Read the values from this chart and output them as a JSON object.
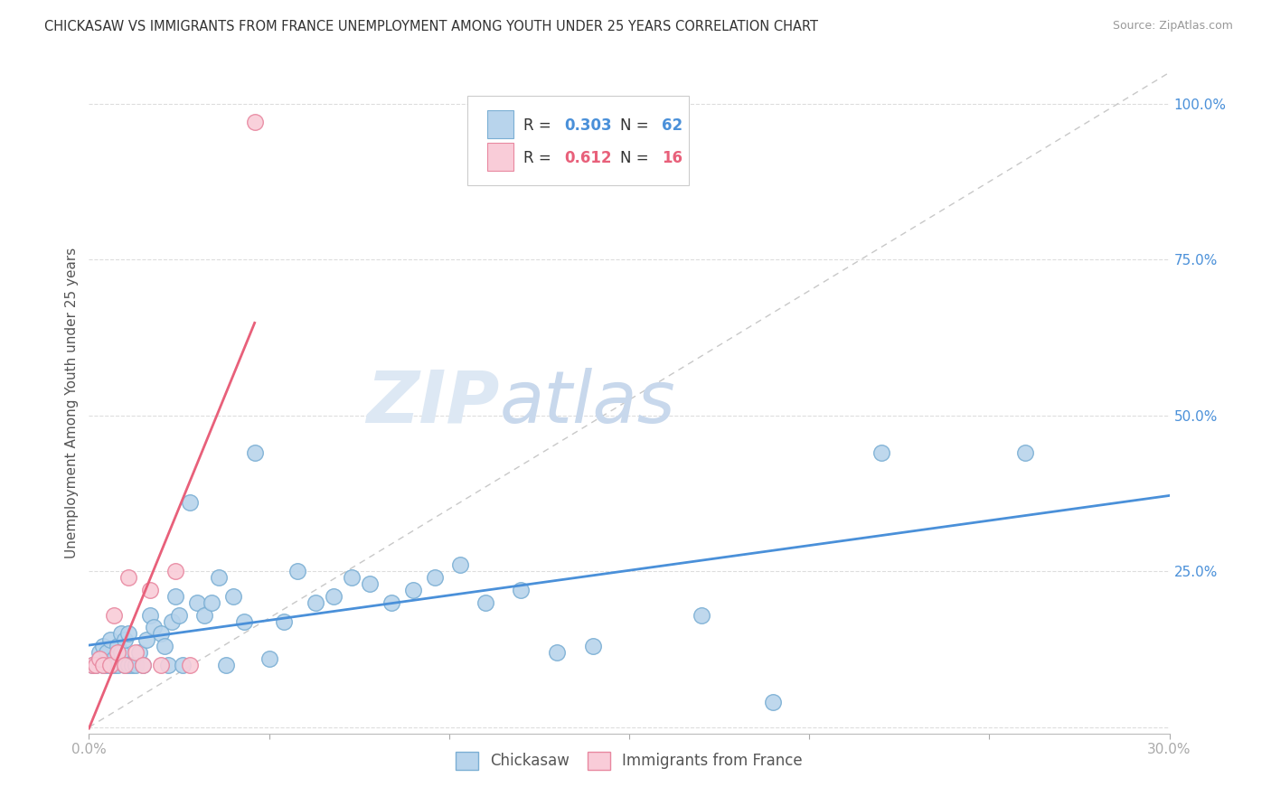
{
  "title": "CHICKASAW VS IMMIGRANTS FROM FRANCE UNEMPLOYMENT AMONG YOUTH UNDER 25 YEARS CORRELATION CHART",
  "source": "Source: ZipAtlas.com",
  "ylabel": "Unemployment Among Youth under 25 years",
  "xlim": [
    0.0,
    0.3
  ],
  "ylim": [
    -0.01,
    1.05
  ],
  "yticks_right": [
    0.0,
    0.25,
    0.5,
    0.75,
    1.0
  ],
  "yticklabels_right": [
    "",
    "25.0%",
    "50.0%",
    "75.0%",
    "100.0%"
  ],
  "chickasaw_color": "#b8d4ec",
  "france_color": "#f9ccd8",
  "chickasaw_edge": "#7bafd4",
  "france_edge": "#e888a0",
  "blue_line_color": "#4a90d9",
  "pink_line_color": "#e8607a",
  "diagonal_color": "#c8c8c8",
  "legend_R_blue": "0.303",
  "legend_N_blue": "62",
  "legend_R_pink": "0.612",
  "legend_N_pink": "16",
  "legend_label_blue": "Chickasaw",
  "legend_label_pink": "Immigrants from France",
  "watermark_zip": "ZIP",
  "watermark_atlas": "atlas",
  "chickasaw_x": [
    0.001,
    0.002,
    0.003,
    0.003,
    0.004,
    0.004,
    0.005,
    0.005,
    0.006,
    0.006,
    0.007,
    0.007,
    0.008,
    0.008,
    0.009,
    0.009,
    0.01,
    0.01,
    0.011,
    0.011,
    0.012,
    0.013,
    0.014,
    0.015,
    0.016,
    0.017,
    0.018,
    0.02,
    0.021,
    0.022,
    0.023,
    0.024,
    0.025,
    0.026,
    0.028,
    0.03,
    0.032,
    0.034,
    0.036,
    0.038,
    0.04,
    0.043,
    0.046,
    0.05,
    0.054,
    0.058,
    0.063,
    0.068,
    0.073,
    0.078,
    0.084,
    0.09,
    0.096,
    0.103,
    0.11,
    0.12,
    0.13,
    0.14,
    0.17,
    0.19,
    0.22,
    0.26
  ],
  "chickasaw_y": [
    0.1,
    0.1,
    0.11,
    0.12,
    0.1,
    0.13,
    0.1,
    0.12,
    0.1,
    0.14,
    0.11,
    0.1,
    0.1,
    0.13,
    0.15,
    0.12,
    0.14,
    0.1,
    0.1,
    0.15,
    0.1,
    0.1,
    0.12,
    0.1,
    0.14,
    0.18,
    0.16,
    0.15,
    0.13,
    0.1,
    0.17,
    0.21,
    0.18,
    0.1,
    0.36,
    0.2,
    0.18,
    0.2,
    0.24,
    0.1,
    0.21,
    0.17,
    0.44,
    0.11,
    0.17,
    0.25,
    0.2,
    0.21,
    0.24,
    0.23,
    0.2,
    0.22,
    0.24,
    0.26,
    0.2,
    0.22,
    0.12,
    0.13,
    0.18,
    0.04,
    0.44,
    0.44
  ],
  "france_x": [
    0.001,
    0.002,
    0.003,
    0.004,
    0.006,
    0.007,
    0.008,
    0.01,
    0.011,
    0.013,
    0.015,
    0.017,
    0.02,
    0.024,
    0.028,
    0.046
  ],
  "france_y": [
    0.1,
    0.1,
    0.11,
    0.1,
    0.1,
    0.18,
    0.12,
    0.1,
    0.24,
    0.12,
    0.1,
    0.22,
    0.1,
    0.25,
    0.1,
    0.97
  ]
}
